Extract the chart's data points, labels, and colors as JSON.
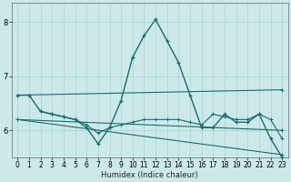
{
  "xlabel": "Humidex (Indice chaleur)",
  "xlim": [
    -0.5,
    23.5
  ],
  "ylim": [
    5.5,
    8.35
  ],
  "yticks": [
    6,
    7,
    8
  ],
  "xtick_labels": [
    "0",
    "1",
    "2",
    "3",
    "4",
    "5",
    "6",
    "7",
    "8",
    "9",
    "10",
    "11",
    "12",
    "13",
    "14",
    "15",
    "16",
    "17",
    "18",
    "19",
    "20",
    "21",
    "22",
    "23"
  ],
  "bg_color": "#cce9ea",
  "grid_color": "#aad0d0",
  "line_color": "#1a6b6b",
  "lines": [
    {
      "x": [
        0,
        1,
        2,
        3,
        4,
        5,
        6,
        7,
        8,
        9,
        10,
        11,
        12,
        13,
        14,
        15,
        16,
        17,
        18,
        19,
        20,
        21,
        22,
        23
      ],
      "y": [
        6.65,
        6.65,
        6.35,
        6.3,
        6.25,
        6.2,
        6.05,
        5.75,
        6.05,
        6.55,
        7.35,
        7.75,
        8.05,
        7.65,
        7.25,
        6.65,
        6.05,
        6.05,
        6.3,
        6.15,
        6.15,
        6.3,
        5.85,
        5.5
      ]
    },
    {
      "x": [
        0,
        23
      ],
      "y": [
        6.65,
        6.75
      ]
    },
    {
      "x": [
        0,
        23
      ],
      "y": [
        6.2,
        6.0
      ]
    },
    {
      "x": [
        0,
        23
      ],
      "y": [
        6.2,
        5.55
      ]
    },
    {
      "x": [
        2,
        3,
        4,
        5,
        6,
        7,
        8,
        9,
        10,
        11,
        12,
        13,
        14,
        15,
        16,
        17,
        18,
        19,
        20,
        21,
        22,
        23
      ],
      "y": [
        6.35,
        6.3,
        6.25,
        6.2,
        6.1,
        5.95,
        6.05,
        6.1,
        6.15,
        6.2,
        6.2,
        6.2,
        6.2,
        6.15,
        6.1,
        6.3,
        6.25,
        6.2,
        6.2,
        6.3,
        6.2,
        5.85
      ]
    }
  ]
}
